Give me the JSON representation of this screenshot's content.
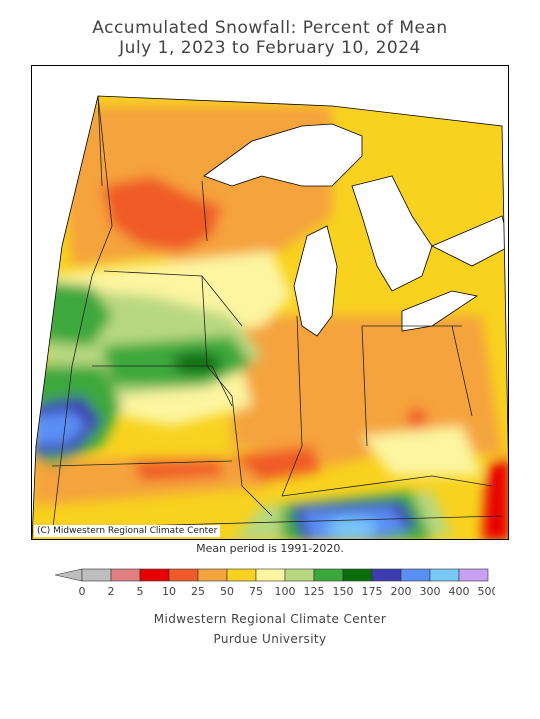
{
  "title_line1": "Accumulated Snowfall: Percent of Mean",
  "title_line2": "July 1, 2023 to February 10, 2024",
  "copyright": "(C) Midwestern Regional Climate Center",
  "mean_period": "Mean period is 1991-2020.",
  "legend": {
    "ticks": [
      "0",
      "2",
      "5",
      "10",
      "25",
      "50",
      "75",
      "100",
      "125",
      "150",
      "175",
      "200",
      "300",
      "400",
      "500"
    ],
    "colors": [
      "#bebebe",
      "#e08080",
      "#e80000",
      "#f05a28",
      "#f5a33c",
      "#f8d21e",
      "#fdf5a0",
      "#b8d880",
      "#3ca83c",
      "#0a6e0a",
      "#3c3cb0",
      "#5a8ff5",
      "#78c8fa",
      "#c8a0f5"
    ],
    "below_min_color": "#bebebe"
  },
  "footer_line1": "Midwestern Regional Climate Center",
  "footer_line2": "Purdue University",
  "map_colors": {
    "lake": "#ffffff",
    "background": "#ffffff"
  }
}
